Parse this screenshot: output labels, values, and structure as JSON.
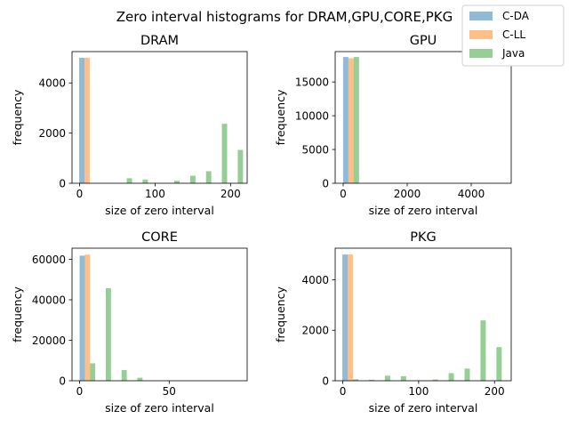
{
  "figure": {
    "suptitle": "Zero interval histograms for DRAM,GPU,CORE,PKG",
    "legend": [
      {
        "name": "C-DA",
        "color": "#1f77b4"
      },
      {
        "name": "C-LL",
        "color": "#ff7f0e"
      },
      {
        "name": "Java",
        "color": "#2ca02c"
      }
    ],
    "legend_placement": "top-right",
    "bar_alpha": 0.5
  },
  "chart_data": [
    {
      "type": "bar",
      "title": "DRAM",
      "xlabel": "size of zero interval",
      "ylabel": "frequency",
      "xlim": [
        -10,
        222
      ],
      "ylim": [
        0,
        5250
      ],
      "xticks": [
        0,
        100,
        200
      ],
      "yticks": [
        0,
        2000,
        4000
      ],
      "bar_width": 7,
      "series": [
        {
          "name": "C-DA",
          "x": [
            3
          ],
          "values": [
            5000
          ]
        },
        {
          "name": "C-LL",
          "x": [
            10
          ],
          "values": [
            5000
          ]
        },
        {
          "name": "Java",
          "x": [
            3,
            24,
            45,
            66,
            87,
            108,
            129,
            150,
            171,
            192,
            213
          ],
          "values": [
            0,
            0,
            0,
            200,
            150,
            10,
            100,
            300,
            480,
            2370,
            1330
          ]
        }
      ]
    },
    {
      "type": "bar",
      "title": "GPU",
      "xlabel": "size of zero interval",
      "ylabel": "frequency",
      "xlim": [
        -250,
        5250
      ],
      "ylim": [
        0,
        19500
      ],
      "xticks": [
        0,
        2000,
        4000
      ],
      "yticks": [
        0,
        5000,
        10000,
        15000
      ],
      "bar_width": 166,
      "series": [
        {
          "name": "C-DA",
          "x": [
            80
          ],
          "values": [
            18700
          ]
        },
        {
          "name": "C-LL",
          "x": [
            246
          ],
          "values": [
            18500
          ]
        },
        {
          "name": "Java",
          "x": [
            412
          ],
          "values": [
            18700
          ]
        }
      ]
    },
    {
      "type": "bar",
      "title": "CORE",
      "xlabel": "size of zero interval",
      "ylabel": "frequency",
      "xlim": [
        -4.2,
        93.5
      ],
      "ylim": [
        0,
        65500
      ],
      "xticks": [
        0,
        50
      ],
      "yticks": [
        0,
        20000,
        40000,
        60000
      ],
      "bar_width": 2.9,
      "series": [
        {
          "name": "C-DA",
          "x": [
            1.5
          ],
          "values": [
            61800
          ]
        },
        {
          "name": "C-LL",
          "x": [
            4.4
          ],
          "values": [
            62300
          ]
        },
        {
          "name": "Java",
          "x": [
            7.3,
            16.1,
            24.9,
            33.7,
            42.5,
            51.3,
            60.1,
            68.9,
            77.7,
            86.5
          ],
          "values": [
            8600,
            45700,
            5300,
            1500,
            0,
            0,
            0,
            0,
            0,
            0
          ]
        }
      ]
    },
    {
      "type": "bar",
      "title": "PKG",
      "xlabel": "size of zero interval",
      "ylabel": "frequency",
      "xlim": [
        -10,
        222
      ],
      "ylim": [
        0,
        5250
      ],
      "xticks": [
        0,
        100,
        200
      ],
      "yticks": [
        0,
        2000,
        4000
      ],
      "bar_width": 7,
      "series": [
        {
          "name": "C-DA",
          "x": [
            3
          ],
          "values": [
            5000
          ]
        },
        {
          "name": "C-LL",
          "x": [
            10
          ],
          "values": [
            5000
          ]
        },
        {
          "name": "Java",
          "x": [
            17,
            38,
            59,
            80,
            101,
            122,
            143,
            164,
            185,
            206
          ],
          "values": [
            60,
            40,
            200,
            180,
            10,
            50,
            300,
            480,
            2390,
            1330
          ]
        }
      ]
    }
  ]
}
